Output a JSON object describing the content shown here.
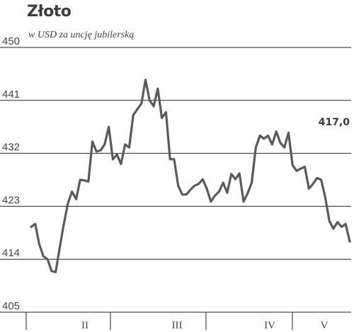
{
  "chart_data": {
    "type": "line",
    "title": "Złoto",
    "subtitle": "w USD za uncję jubilerską",
    "ylim": [
      405,
      450
    ],
    "yticks": [
      405,
      414,
      423,
      432,
      441,
      450
    ],
    "x_labels": [
      "II",
      "III",
      "IV",
      "V"
    ],
    "last_value_label": "417,0",
    "grid": true,
    "colors": {
      "line": "#5a5a5a",
      "grid": "#222222",
      "text": "#444444"
    },
    "series": [
      {
        "values": [
          419.5,
          420,
          416.5,
          414.5,
          414,
          412,
          411.8,
          416,
          420,
          423.5,
          425.5,
          424.2,
          427.5,
          427.4,
          427.2,
          434,
          432.3,
          432.5,
          433.5,
          436.5,
          431,
          431.8,
          430.2,
          433.5,
          433,
          438.5,
          439.5,
          440.5,
          444.5,
          441,
          440,
          443,
          438,
          439,
          431,
          431,
          426.5,
          425,
          425,
          425.8,
          426.5,
          426.8,
          427.6,
          426,
          423.8,
          424.8,
          425.5,
          427,
          425.3,
          428.5,
          427.6,
          428.6,
          423.8,
          425.2,
          427,
          433,
          435,
          434.5,
          435,
          433.5,
          435.7,
          433.8,
          433,
          435.5,
          430,
          429,
          429.4,
          429.7,
          426,
          426.8,
          427.8,
          427.5,
          424.5,
          420.5,
          419.2,
          420.3,
          419.5,
          420,
          417
        ]
      }
    ]
  }
}
